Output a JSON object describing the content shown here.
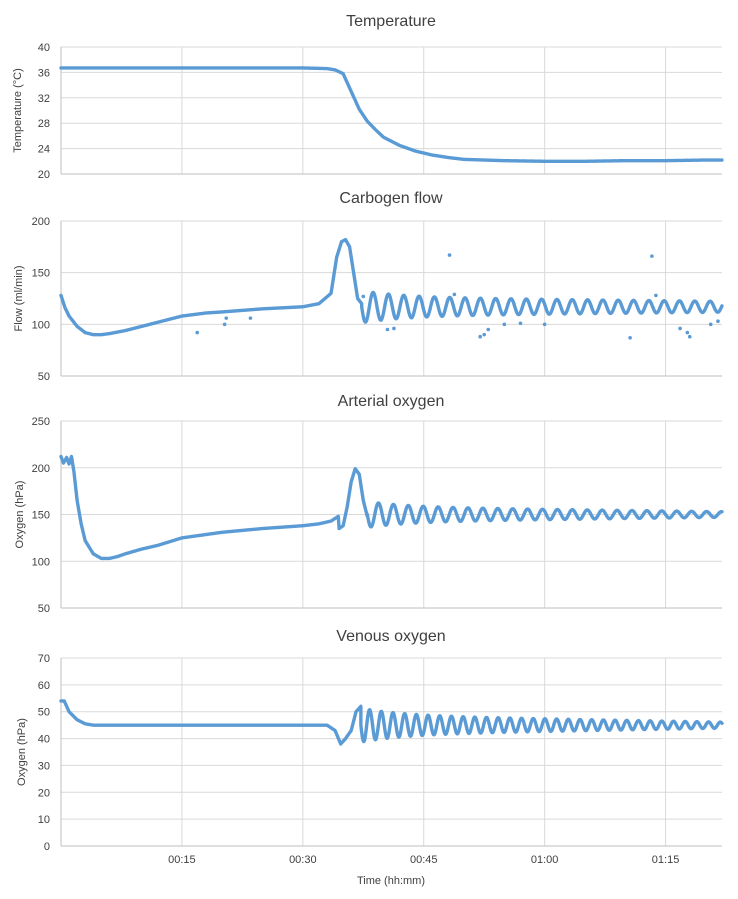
{
  "colors": {
    "series": "#5b9bd5"
  },
  "x_axis": {
    "label": "Time (hh:mm)",
    "range_minutes": [
      0,
      82
    ],
    "ticks": [
      {
        "minute": 15,
        "label": "00:15"
      },
      {
        "minute": 30,
        "label": "00:30"
      },
      {
        "minute": 45,
        "label": "00:45"
      },
      {
        "minute": 60,
        "label": "01:00"
      },
      {
        "minute": 75,
        "label": "01:15"
      }
    ]
  },
  "chart_data": [
    {
      "type": "line",
      "title": "Temperature",
      "ylabel": "Temperature (°C)",
      "ylim": [
        20,
        40
      ],
      "yticks": [
        20,
        24,
        28,
        32,
        36,
        40
      ],
      "grid": true,
      "x_unit": "minutes",
      "x": [
        0,
        5,
        10,
        15,
        20,
        25,
        30,
        33,
        34,
        35,
        36,
        37,
        38,
        39,
        40,
        42,
        44,
        46,
        48,
        50,
        55,
        60,
        65,
        70,
        75,
        80,
        82
      ],
      "values": [
        36.7,
        36.7,
        36.7,
        36.7,
        36.7,
        36.7,
        36.7,
        36.6,
        36.4,
        35.8,
        33.0,
        30.2,
        28.3,
        27.0,
        25.8,
        24.5,
        23.6,
        23.0,
        22.6,
        22.3,
        22.1,
        22.0,
        22.0,
        22.1,
        22.1,
        22.2,
        22.2
      ],
      "outliers": []
    },
    {
      "type": "line",
      "title": "Carbogen flow",
      "ylabel": "Flow (ml/min)",
      "ylim": [
        50,
        200
      ],
      "yticks": [
        50,
        100,
        150,
        200
      ],
      "grid": true,
      "x_unit": "minutes",
      "x": [
        0,
        0.5,
        1,
        2,
        3,
        4,
        5,
        6,
        8,
        10,
        12,
        15,
        18,
        20,
        25,
        30,
        32,
        33.5,
        34.2,
        34.8,
        35.3,
        35.8,
        36.3,
        36.8,
        37.3
      ],
      "values": [
        128,
        116,
        108,
        98,
        92,
        90,
        90,
        91,
        94,
        98,
        102,
        108,
        111,
        112,
        115,
        117,
        120,
        130,
        165,
        180,
        182,
        175,
        150,
        125,
        120
      ],
      "oscillation": {
        "start_minute": 37.3,
        "end_minute": 82,
        "center": 117,
        "amplitude_start": 14,
        "amplitude_end": 7,
        "period_minutes": 1.9
      },
      "outliers": [
        [
          16.9,
          92
        ],
        [
          20.3,
          100
        ],
        [
          20.5,
          106
        ],
        [
          23.5,
          106
        ],
        [
          37.5,
          127
        ],
        [
          40.5,
          95
        ],
        [
          41.3,
          96
        ],
        [
          48.2,
          167
        ],
        [
          48.8,
          129
        ],
        [
          52,
          88
        ],
        [
          52.5,
          90
        ],
        [
          53,
          95
        ],
        [
          55,
          100
        ],
        [
          57,
          101
        ],
        [
          60,
          100
        ],
        [
          70.6,
          87
        ],
        [
          73.3,
          166
        ],
        [
          73.8,
          128
        ],
        [
          76.8,
          96
        ],
        [
          77.7,
          92
        ],
        [
          78,
          88
        ],
        [
          80.6,
          100
        ],
        [
          81.5,
          103
        ]
      ]
    },
    {
      "type": "line",
      "title": "Arterial oxygen",
      "ylabel": "Oxygen (hPa)",
      "ylim": [
        50,
        250
      ],
      "yticks": [
        50,
        100,
        150,
        200,
        250
      ],
      "grid": true,
      "x_unit": "minutes",
      "x": [
        0,
        0.3,
        0.7,
        1.0,
        1.3,
        1.6,
        2,
        2.5,
        3,
        4,
        5,
        6,
        7,
        8,
        10,
        12,
        15,
        20,
        25,
        30,
        32,
        33.5,
        34.4,
        34.5,
        35,
        35.5,
        36,
        36.5,
        37,
        37.5,
        38
      ],
      "values": [
        212,
        205,
        211,
        204,
        212,
        196,
        165,
        140,
        122,
        108,
        103,
        103,
        105,
        108,
        113,
        117,
        125,
        131,
        135,
        138,
        140,
        143,
        148,
        135,
        138,
        158,
        185,
        199,
        193,
        165,
        148
      ],
      "oscillation": {
        "start_minute": 38,
        "end_minute": 82,
        "center": 150,
        "amplitude_start": 13,
        "amplitude_end": 4,
        "period_minutes": 1.85
      },
      "outliers": []
    },
    {
      "type": "line",
      "title": "Venous oxygen",
      "ylabel": "Oxygen (hPa)",
      "ylim": [
        0,
        70
      ],
      "yticks": [
        0,
        10,
        20,
        30,
        40,
        50,
        60,
        70
      ],
      "grid": true,
      "x_unit": "minutes",
      "x": [
        0,
        0.4,
        1,
        2,
        3,
        4,
        5,
        10,
        15,
        20,
        25,
        30,
        33,
        34,
        34.7,
        35.3,
        36,
        36.6,
        37.2
      ],
      "values": [
        54,
        54,
        50,
        47,
        45.5,
        45,
        45,
        45,
        45,
        45,
        45,
        45,
        45,
        43,
        38,
        40,
        43,
        50,
        52
      ],
      "oscillation": {
        "start_minute": 37.2,
        "end_minute": 82,
        "center": 45,
        "amplitude_start": 6,
        "amplitude_end": 1.5,
        "period_minutes": 1.45
      },
      "outliers": []
    }
  ]
}
